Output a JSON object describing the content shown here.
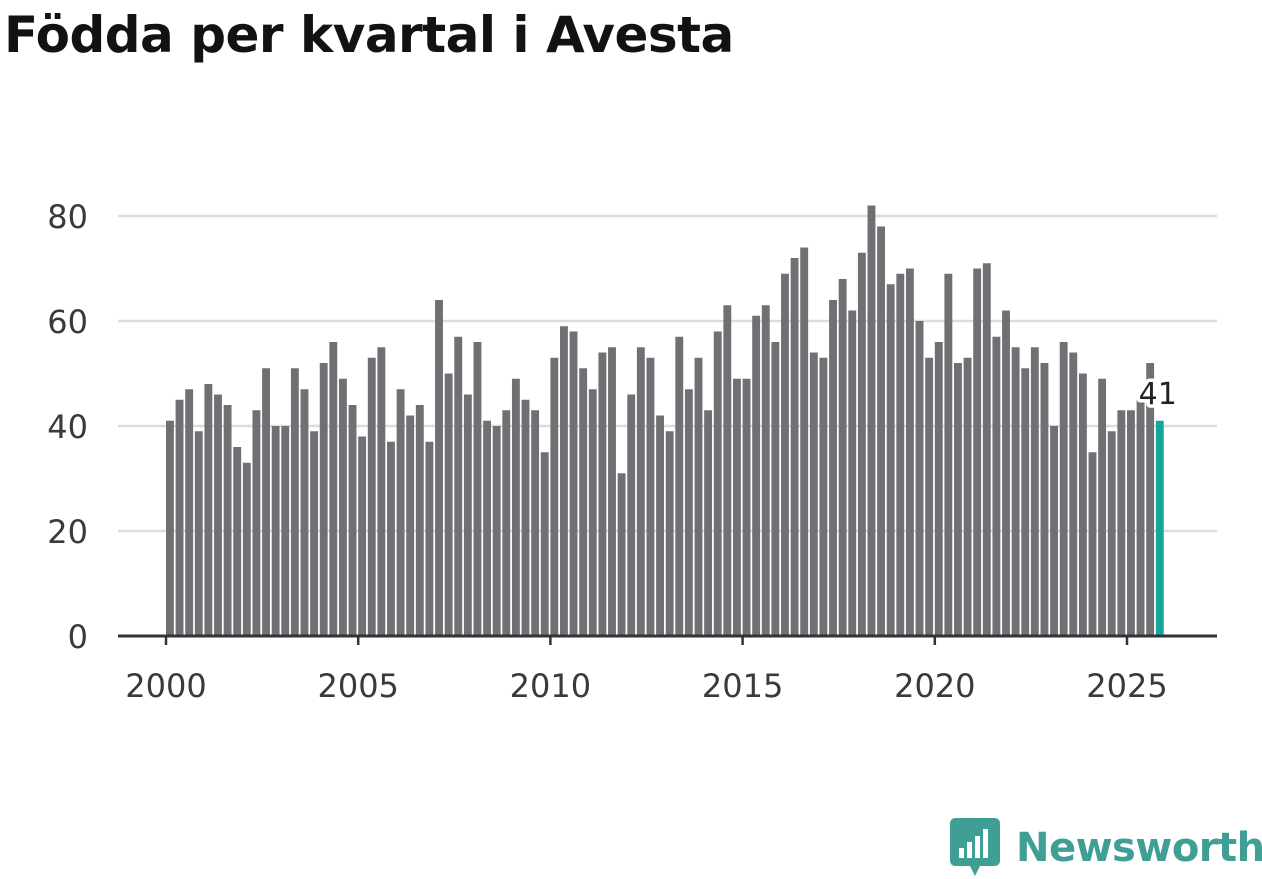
{
  "colors": {
    "bar": "#707074",
    "highlight": "#17a499",
    "grid": "#dcdcdc",
    "axis": "#333333",
    "brand": "#3f9f95"
  },
  "brand": {
    "name": "Newsworthy",
    "icon": "newsworthy-logo-icon"
  },
  "chart_data": {
    "type": "bar",
    "title": "Födda per kvartal i Avesta",
    "xlabel": "",
    "ylabel": "",
    "ylim": [
      0,
      85
    ],
    "yticks": [
      0,
      20,
      40,
      60,
      80
    ],
    "xticks": [
      2000,
      2005,
      2010,
      2015,
      2020,
      2025
    ],
    "grid": true,
    "x_start": 2000,
    "periods_per_year": 4,
    "values": [
      41,
      45,
      47,
      39,
      48,
      46,
      44,
      36,
      33,
      43,
      51,
      40,
      40,
      51,
      47,
      39,
      52,
      56,
      49,
      44,
      38,
      53,
      55,
      37,
      47,
      42,
      44,
      37,
      64,
      50,
      57,
      46,
      56,
      41,
      40,
      43,
      49,
      45,
      43,
      35,
      53,
      59,
      58,
      51,
      47,
      54,
      55,
      31,
      46,
      55,
      53,
      42,
      39,
      57,
      47,
      53,
      43,
      58,
      63,
      49,
      49,
      61,
      63,
      56,
      69,
      72,
      74,
      54,
      53,
      64,
      68,
      62,
      73,
      82,
      78,
      67,
      69,
      70,
      60,
      53,
      56,
      69,
      52,
      53,
      70,
      71,
      57,
      62,
      55,
      51,
      55,
      52,
      40,
      56,
      54,
      50,
      35,
      49,
      39,
      43,
      43,
      45,
      52,
      41
    ],
    "highlight_last": true,
    "annotation": "41"
  }
}
